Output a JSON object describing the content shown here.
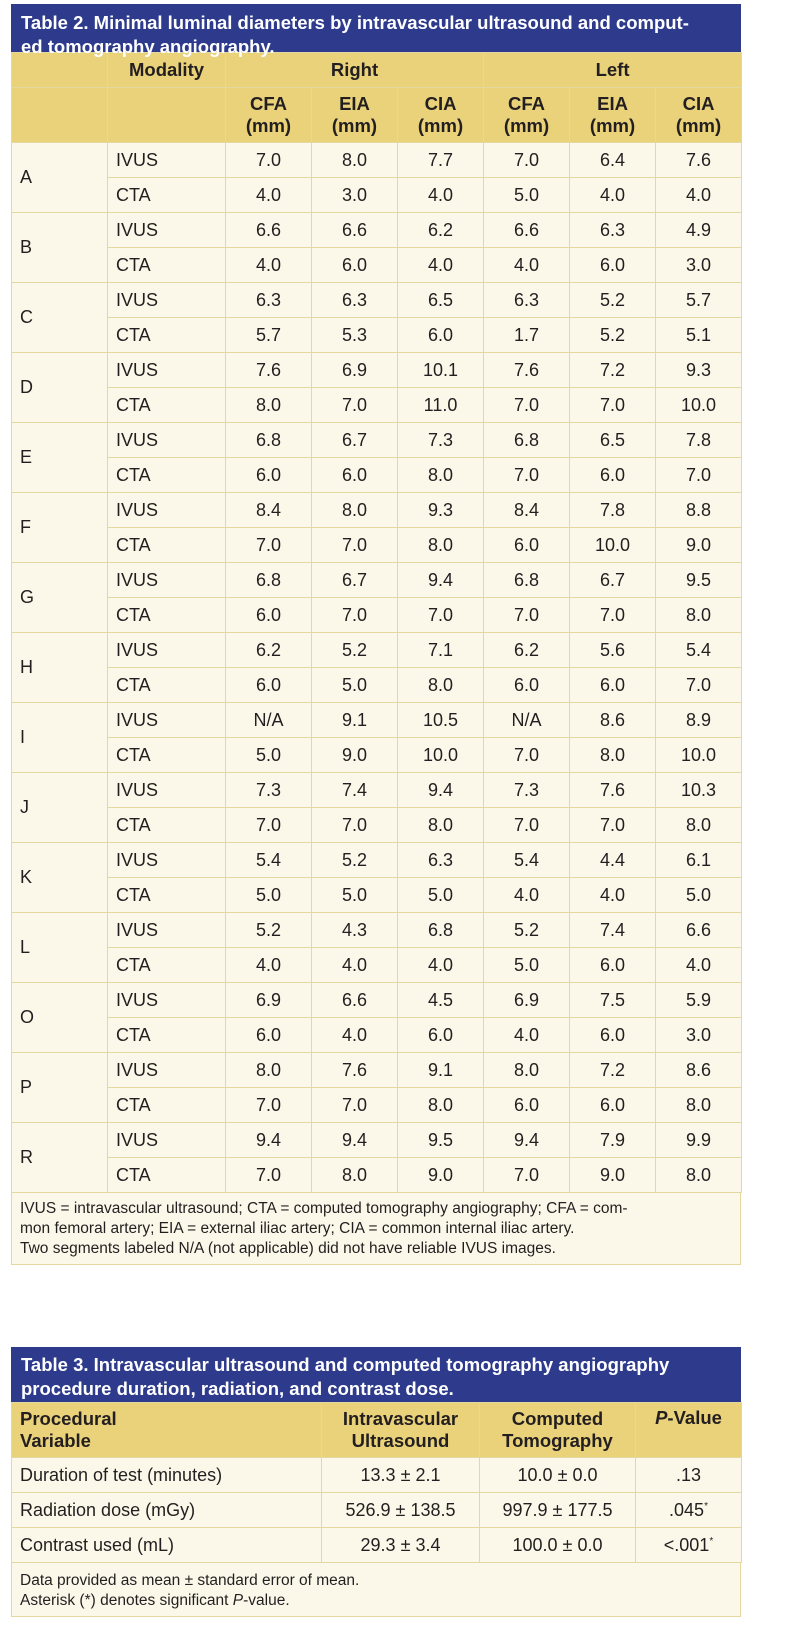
{
  "table2": {
    "title_line1": "Table 2. Minimal luminal diameters by intravascular ultrasound and comput-",
    "title_line2": "ed tomography angiography.",
    "header": {
      "modality": "Modality",
      "right": "Right",
      "left": "Left",
      "cols": [
        {
          "name": "CFA",
          "unit": "(mm)"
        },
        {
          "name": "EIA",
          "unit": "(mm)"
        },
        {
          "name": "CIA",
          "unit": "(mm)"
        },
        {
          "name": "CFA",
          "unit": "(mm)"
        },
        {
          "name": "EIA",
          "unit": "(mm)"
        },
        {
          "name": "CIA",
          "unit": "(mm)"
        }
      ]
    },
    "rows": [
      {
        "label": "A",
        "ivus": [
          "IVUS",
          "7.0",
          "8.0",
          "7.7",
          "7.0",
          "6.4",
          "7.6"
        ],
        "cta": [
          "CTA",
          "4.0",
          "3.0",
          "4.0",
          "5.0",
          "4.0",
          "4.0"
        ]
      },
      {
        "label": "B",
        "ivus": [
          "IVUS",
          "6.6",
          "6.6",
          "6.2",
          "6.6",
          "6.3",
          "4.9"
        ],
        "cta": [
          "CTA",
          "4.0",
          "6.0",
          "4.0",
          "4.0",
          "6.0",
          "3.0"
        ]
      },
      {
        "label": "C",
        "ivus": [
          "IVUS",
          "6.3",
          "6.3",
          "6.5",
          "6.3",
          "5.2",
          "5.7"
        ],
        "cta": [
          "CTA",
          "5.7",
          "5.3",
          "6.0",
          "1.7",
          "5.2",
          "5.1"
        ]
      },
      {
        "label": "D",
        "ivus": [
          "IVUS",
          "7.6",
          "6.9",
          "10.1",
          "7.6",
          "7.2",
          "9.3"
        ],
        "cta": [
          "CTA",
          "8.0",
          "7.0",
          "11.0",
          "7.0",
          "7.0",
          "10.0"
        ]
      },
      {
        "label": "E",
        "ivus": [
          "IVUS",
          "6.8",
          "6.7",
          "7.3",
          "6.8",
          "6.5",
          "7.8"
        ],
        "cta": [
          "CTA",
          "6.0",
          "6.0",
          "8.0",
          "7.0",
          "6.0",
          "7.0"
        ]
      },
      {
        "label": "F",
        "ivus": [
          "IVUS",
          "8.4",
          "8.0",
          "9.3",
          "8.4",
          "7.8",
          "8.8"
        ],
        "cta": [
          "CTA",
          "7.0",
          "7.0",
          "8.0",
          "6.0",
          "10.0",
          "9.0"
        ]
      },
      {
        "label": "G",
        "ivus": [
          "IVUS",
          "6.8",
          "6.7",
          "9.4",
          "6.8",
          "6.7",
          "9.5"
        ],
        "cta": [
          "CTA",
          "6.0",
          "7.0",
          "7.0",
          "7.0",
          "7.0",
          "8.0"
        ]
      },
      {
        "label": "H",
        "ivus": [
          "IVUS",
          "6.2",
          "5.2",
          "7.1",
          "6.2",
          "5.6",
          "5.4"
        ],
        "cta": [
          "CTA",
          "6.0",
          "5.0",
          "8.0",
          "6.0",
          "6.0",
          "7.0"
        ]
      },
      {
        "label": "I",
        "ivus": [
          "IVUS",
          "N/A",
          "9.1",
          "10.5",
          "N/A",
          "8.6",
          "8.9"
        ],
        "cta": [
          "CTA",
          "5.0",
          "9.0",
          "10.0",
          "7.0",
          "8.0",
          "10.0"
        ]
      },
      {
        "label": "J",
        "ivus": [
          "IVUS",
          "7.3",
          "7.4",
          "9.4",
          "7.3",
          "7.6",
          "10.3"
        ],
        "cta": [
          "CTA",
          "7.0",
          "7.0",
          "8.0",
          "7.0",
          "7.0",
          "8.0"
        ]
      },
      {
        "label": "K",
        "ivus": [
          "IVUS",
          "5.4",
          "5.2",
          "6.3",
          "5.4",
          "4.4",
          "6.1"
        ],
        "cta": [
          "CTA",
          "5.0",
          "5.0",
          "5.0",
          "4.0",
          "4.0",
          "5.0"
        ]
      },
      {
        "label": "L",
        "ivus": [
          "IVUS",
          "5.2",
          "4.3",
          "6.8",
          "5.2",
          "7.4",
          "6.6"
        ],
        "cta": [
          "CTA",
          "4.0",
          "4.0",
          "4.0",
          "5.0",
          "6.0",
          "4.0"
        ]
      },
      {
        "label": "O",
        "ivus": [
          "IVUS",
          "6.9",
          "6.6",
          "4.5",
          "6.9",
          "7.5",
          "5.9"
        ],
        "cta": [
          "CTA",
          "6.0",
          "4.0",
          "6.0",
          "4.0",
          "6.0",
          "3.0"
        ]
      },
      {
        "label": "P",
        "ivus": [
          "IVUS",
          "8.0",
          "7.6",
          "9.1",
          "8.0",
          "7.2",
          "8.6"
        ],
        "cta": [
          "CTA",
          "7.0",
          "7.0",
          "8.0",
          "6.0",
          "6.0",
          "8.0"
        ]
      },
      {
        "label": "R",
        "ivus": [
          "IVUS",
          "9.4",
          "9.4",
          "9.5",
          "9.4",
          "7.9",
          "9.9"
        ],
        "cta": [
          "CTA",
          "7.0",
          "8.0",
          "9.0",
          "7.0",
          "9.0",
          "8.0"
        ]
      }
    ],
    "footnote_line1": "IVUS = intravascular ultrasound; CTA = computed tomography angiography; CFA = com-",
    "footnote_line2": "mon femoral artery; EIA = external iliac artery; CIA = common internal iliac artery.",
    "footnote_line3": "Two segments labeled N/A (not applicable) did not have reliable IVUS images."
  },
  "table3": {
    "title_line1": "Table 3. Intravascular ultrasound and computed tomography angiography",
    "title_line2": "procedure duration, radiation, and contrast dose.",
    "header": {
      "col1_line1": "Procedural",
      "col1_line2": "Variable",
      "col2_line1": "Intravascular",
      "col2_line2": "Ultrasound",
      "col3_line1": "Computed",
      "col3_line2": "Tomography",
      "col4_italic": "P",
      "col4_rest": "-Value"
    },
    "rows": [
      {
        "variable": "Duration of test (minutes)",
        "ivus": "13.3 ± 2.1",
        "ct": "10.0 ± 0.0",
        "p": ".13",
        "sig": ""
      },
      {
        "variable": "Radiation dose (mGy)",
        "ivus": "526.9 ± 138.5",
        "ct": "997.9 ± 177.5",
        "p": ".045",
        "sig": "*"
      },
      {
        "variable": "Contrast used (mL)",
        "ivus": "29.3 ± 3.4",
        "ct": "100.0 ± 0.0",
        "p": "<.001",
        "sig": "*"
      }
    ],
    "footnote_line1": "Data provided as mean ± standard error of mean.",
    "footnote_line2_a": "Asterisk (*) denotes significant ",
    "footnote_line2_italic": "P",
    "footnote_line2_b": "-value."
  }
}
